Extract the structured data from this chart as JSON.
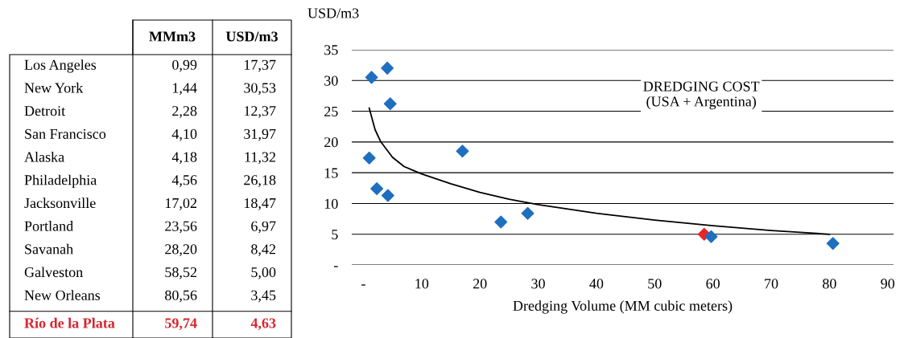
{
  "chart_data": [
    {
      "type": "other",
      "categories": [
        "Los Angeles",
        "New York",
        "Detroit",
        "San Francisco",
        "Alaska",
        "Philadelphia",
        "Jacksonville",
        "Portland",
        "Savanah",
        "Galveston",
        "New Orleans",
        "Río de la Plata"
      ],
      "colors": [
        "#000000",
        "#000000",
        "#000000",
        "#000000",
        "#000000",
        "#000000",
        "#000000",
        "#000000",
        "#000000",
        "#000000",
        "#000000",
        "#d7262c"
      ],
      "series": [
        {
          "name": "MMm3",
          "values": [
            0.99,
            1.44,
            2.28,
            4.1,
            4.18,
            4.56,
            17.02,
            23.56,
            28.2,
            58.52,
            80.56,
            59.74
          ],
          "value_labels": [
            "0,99",
            "1,44",
            "2,28",
            "4,10",
            "4,18",
            "4,56",
            "17,02",
            "23,56",
            "28,20",
            "58,52",
            "80,56",
            "59,74"
          ]
        },
        {
          "name": "USD/m3",
          "values": [
            17.37,
            30.53,
            12.37,
            31.97,
            11.32,
            26.18,
            18.47,
            6.97,
            8.42,
            5.0,
            3.45,
            4.63
          ],
          "value_labels": [
            "17,37",
            "30,53",
            "12,37",
            "31,97",
            "11,32",
            "26,18",
            "18,47",
            "6,97",
            "8,42",
            "5,00",
            "3,45",
            "4,63"
          ]
        }
      ]
    },
    {
      "type": "scatter",
      "series": [
        {
          "type": "scatter",
          "x": [
            1.0,
            1.4,
            2.3,
            4.1,
            4.2,
            4.6,
            17.0,
            23.6,
            28.2,
            58.5,
            80.6,
            59.7
          ],
          "values": [
            17.4,
            30.5,
            12.4,
            32.0,
            11.3,
            26.2,
            18.5,
            7.0,
            8.4,
            5.0,
            3.5,
            4.6
          ],
          "colors": [
            "#1f6fbf",
            "#1f6fbf",
            "#1f6fbf",
            "#1f6fbf",
            "#1f6fbf",
            "#1f6fbf",
            "#1f6fbf",
            "#1f6fbf",
            "#1f6fbf",
            "#e8262a",
            "#1f6fbf",
            "#1f6fbf"
          ]
        },
        {
          "type": "line",
          "marker": "none",
          "name": "DREDGING COST\n(USA + Argentina)",
          "color": "#000000",
          "x": [
            1,
            2,
            3,
            5,
            7,
            10,
            15,
            20,
            25,
            30,
            40,
            50,
            60,
            70,
            80
          ],
          "values": [
            25.5,
            22,
            20,
            17.5,
            16,
            14.8,
            13.2,
            11.8,
            10.7,
            9.8,
            8.4,
            7.3,
            6.4,
            5.6,
            5.0
          ]
        }
      ],
      "xlabel": "Dredging Volume (MM cubic meters)",
      "ylabel": "USD/m3",
      "xlim": [
        -2,
        91
      ],
      "ylim": [
        0,
        35
      ],
      "xticks": [
        {
          "value": 0,
          "label": "-"
        },
        10,
        20,
        30,
        40,
        50,
        60,
        70,
        80,
        90
      ],
      "yticks": [
        {
          "value": 0,
          "label": "-"
        },
        5,
        10,
        15,
        20,
        25,
        30,
        35
      ],
      "grid": "y",
      "legend": false,
      "marker": "diamond"
    }
  ]
}
